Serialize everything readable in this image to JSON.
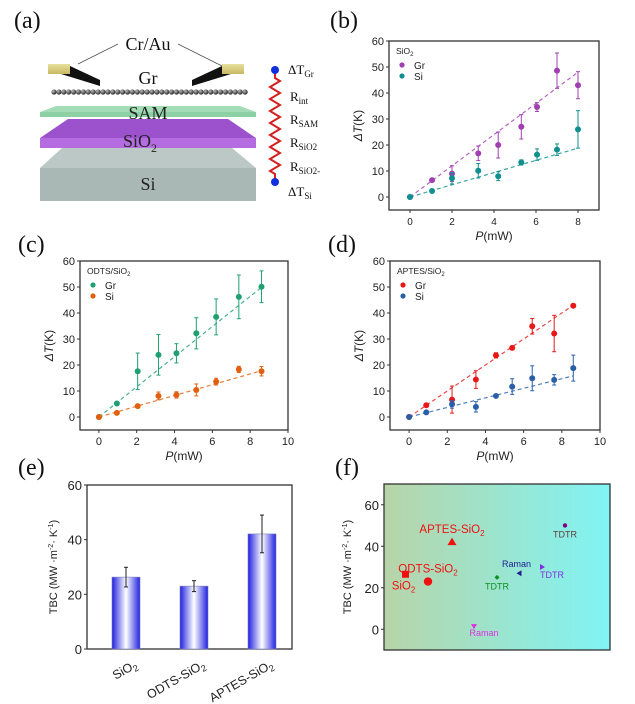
{
  "panels": {
    "a": {
      "label": "(a)"
    },
    "b": {
      "label": "(b)"
    },
    "c": {
      "label": "(c)"
    },
    "d": {
      "label": "(d)"
    },
    "e": {
      "label": "(e)"
    },
    "f": {
      "label": "(f)"
    }
  },
  "schematic": {
    "electrode_label": "Cr/Au",
    "layers": [
      {
        "name": "Gr",
        "label": "Gr"
      },
      {
        "name": "SAM",
        "label": "SAM",
        "color": "#8fd4a6"
      },
      {
        "name": "SiO2",
        "label": "SiO",
        "sub": "2",
        "color": "#a05ad2"
      },
      {
        "name": "Si",
        "label": "Si",
        "color": "#a9b7b5"
      }
    ],
    "circuit": {
      "top_node": {
        "main": "ΔT",
        "sub": "Gr"
      },
      "resistors": [
        {
          "main": "R",
          "sub": "int"
        },
        {
          "main": "R",
          "sub": "SAM"
        },
        {
          "main": "R",
          "sub": "SiO2"
        },
        {
          "main": "R",
          "sub": "SiO2-Si"
        }
      ],
      "bottom_node": {
        "main": "ΔT",
        "sub": "Si"
      },
      "resistor_color": "#d42020",
      "node_color": "#1030e0"
    }
  },
  "chart_data": [
    {
      "id": "b",
      "type": "scatter",
      "title": "",
      "legend_title": "SiO2",
      "legend_position": "top-left",
      "xlabel": "P(mW)",
      "ylabel": "ΔT(K)",
      "xlim": [
        -1,
        9
      ],
      "ylim": [
        -5,
        60
      ],
      "xticks": [
        0,
        2,
        4,
        6,
        8
      ],
      "yticks": [
        0,
        10,
        20,
        30,
        40,
        50,
        60
      ],
      "series": [
        {
          "name": "Gr",
          "color": "#a040b0",
          "x": [
            0,
            1.05,
            2.0,
            3.25,
            4.2,
            5.3,
            6.05,
            7.0,
            8.0
          ],
          "y": [
            0,
            6.5,
            9,
            16.8,
            20,
            27,
            34.6,
            48.6,
            43
          ],
          "err": [
            0,
            0.5,
            3,
            2.8,
            5,
            4.7,
            1.7,
            6.8,
            5.2
          ],
          "fit_slope": 6.0
        },
        {
          "name": "Si",
          "color": "#108f8f",
          "x": [
            0,
            1.05,
            2.0,
            3.25,
            4.2,
            5.3,
            6.05,
            7.0,
            8.0
          ],
          "y": [
            0,
            2.3,
            7.2,
            10.1,
            8.0,
            13.3,
            16.3,
            18.2,
            26.0
          ],
          "err": [
            0,
            0.4,
            2.2,
            2.8,
            1.7,
            1.0,
            2.2,
            2.2,
            7.2
          ],
          "fit_slope": 2.35
        }
      ]
    },
    {
      "id": "c",
      "type": "scatter",
      "legend_title": "ODTS/SiO2",
      "legend_position": "top-left",
      "xlabel": "P(mW)",
      "ylabel": "ΔT(K)",
      "xlim": [
        -1,
        10
      ],
      "ylim": [
        -5,
        60
      ],
      "xticks": [
        0,
        2,
        4,
        6,
        8,
        10
      ],
      "yticks": [
        0,
        10,
        20,
        30,
        40,
        50,
        60
      ],
      "series": [
        {
          "name": "Gr",
          "color": "#20a070",
          "x": [
            0,
            0.95,
            2.05,
            3.15,
            4.1,
            5.15,
            6.2,
            7.4,
            8.6
          ],
          "y": [
            0,
            5.2,
            17.6,
            23.9,
            24.5,
            32.2,
            38.5,
            46.2,
            50.1
          ],
          "err": [
            0,
            0.5,
            7,
            7.8,
            3.7,
            6,
            6.9,
            8.4,
            6.1
          ],
          "fit_slope": 5.8
        },
        {
          "name": "Si",
          "color": "#e06010",
          "x": [
            0,
            0.95,
            2.05,
            3.15,
            4.1,
            5.15,
            6.2,
            7.4,
            8.6
          ],
          "y": [
            0,
            1.6,
            4.2,
            8.1,
            8.5,
            10.4,
            13.6,
            18.3,
            17.6
          ],
          "err": [
            0,
            0.4,
            0.5,
            1.5,
            1.2,
            2.3,
            1.3,
            1.2,
            1.8
          ],
          "fit_slope": 2.07
        }
      ]
    },
    {
      "id": "d",
      "type": "scatter",
      "legend_title": "APTES/SiO2",
      "legend_position": "top-left",
      "xlabel": "P(mW)",
      "ylabel": "ΔT(K)",
      "xlim": [
        -1,
        10
      ],
      "ylim": [
        -5,
        60
      ],
      "xticks": [
        0,
        2,
        4,
        6,
        8,
        10
      ],
      "yticks": [
        0,
        10,
        20,
        30,
        40,
        50,
        60
      ],
      "series": [
        {
          "name": "Gr",
          "color": "#e81818",
          "x": [
            0,
            0.9,
            2.25,
            3.5,
            4.55,
            5.4,
            6.45,
            7.6,
            8.6
          ],
          "y": [
            0,
            4.5,
            6.7,
            14.4,
            23.7,
            26.6,
            34.9,
            32.1,
            42.8
          ],
          "err": [
            0,
            0.4,
            5.2,
            3.4,
            1,
            0.5,
            3,
            7,
            0.5
          ],
          "fit_slope": 5.0
        },
        {
          "name": "Si",
          "color": "#2a5fa8",
          "x": [
            0,
            0.9,
            2.25,
            3.5,
            4.55,
            5.4,
            6.45,
            7.6,
            8.6
          ],
          "y": [
            0,
            1.8,
            4.9,
            3.9,
            8.1,
            11.7,
            14.9,
            14.3,
            18.8
          ],
          "err": [
            0,
            0.4,
            1.5,
            2,
            0.4,
            3,
            4.8,
            2,
            5
          ],
          "fit_slope": 1.84
        }
      ]
    },
    {
      "id": "e",
      "type": "bar",
      "xlabel": "",
      "ylabel": "TBC (MW ·m-2· K-1)",
      "ylim": [
        0,
        60
      ],
      "yticks": [
        0,
        20,
        40,
        60
      ],
      "categories": [
        "SiO2",
        "ODTS-SiO2",
        "APTES-SiO2"
      ],
      "category_labels": [
        {
          "main": "SiO",
          "sub": "2"
        },
        {
          "main": "ODTS-SiO",
          "sub": "2"
        },
        {
          "main": "APTES-SiO",
          "sub": "2"
        }
      ],
      "values": [
        26.3,
        23.0,
        42.1
      ],
      "errors": [
        3.6,
        2.0,
        6.9
      ],
      "bar_color": "#2020e0"
    },
    {
      "id": "f",
      "type": "scatter",
      "xlabel": "",
      "ylabel": "TBC (MW ·m-2· K-1)",
      "ylim": [
        -10,
        70
      ],
      "yticks": [
        0,
        20,
        40,
        60
      ],
      "xlim": [
        0,
        10
      ],
      "background_gradient": [
        "#b8d4a8",
        "#80f4f4"
      ],
      "points": [
        {
          "label": "SiO2",
          "main": "SiO",
          "sub": "2",
          "x": 1.0,
          "y": 26.5,
          "marker": "square",
          "color": "#f01010",
          "label_pos": "below-left"
        },
        {
          "label": "ODTS-SiO2",
          "main": "ODTS-SiO",
          "sub": "2",
          "x": 2.0,
          "y": 23.0,
          "marker": "circle",
          "color": "#f01010",
          "label_pos": "above"
        },
        {
          "label": "APTES-SiO2",
          "main": "APTES-SiO",
          "sub": "2",
          "x": 3.0,
          "y": 42.0,
          "marker": "triangle-up",
          "color": "#f01010",
          "label_pos": "above"
        },
        {
          "label": "Raman",
          "main": "Raman",
          "sub": "",
          "x": 4.0,
          "y": 1.5,
          "marker": "triangle-down",
          "color": "#e030e0",
          "label_pos": "below"
        },
        {
          "label": "TDTR",
          "main": "TDTR",
          "sub": "",
          "x": 5.0,
          "y": 25.0,
          "marker": "diamond",
          "color": "#109020",
          "label_pos": "below"
        },
        {
          "label": "Raman",
          "main": "Raman",
          "sub": "",
          "x": 6.0,
          "y": 27.0,
          "marker": "triangle-left",
          "color": "#202090",
          "label_pos": "above"
        },
        {
          "label": "TDTR",
          "main": "TDTR",
          "sub": "",
          "x": 7.0,
          "y": 30.0,
          "marker": "triangle-right",
          "color": "#8030e0",
          "label_pos": "below"
        },
        {
          "label": "TDTR",
          "main": "TDTR",
          "sub": "",
          "x": 8.0,
          "y": 50.0,
          "marker": "circle-small",
          "color": "#800080",
          "label_pos": "below"
        }
      ]
    }
  ]
}
